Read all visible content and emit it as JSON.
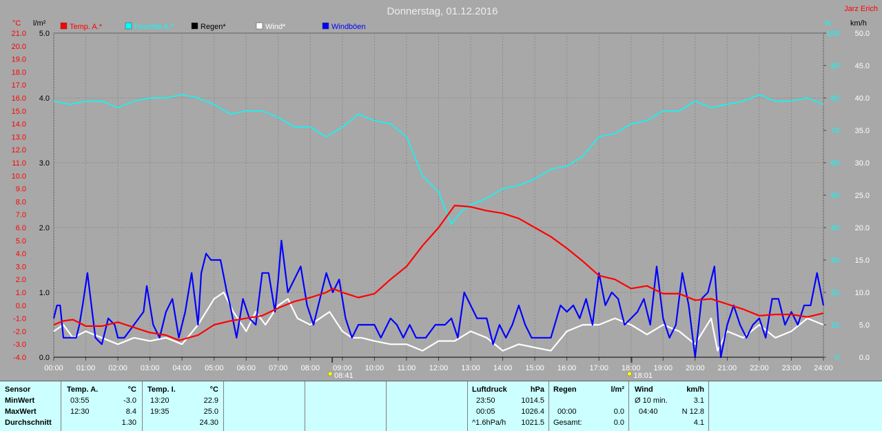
{
  "title": "Donnerstag, 01.12.2016",
  "author": "Jarz Erich",
  "axes": {
    "left_outer_unit": "°C",
    "left_inner_unit": "l/m²",
    "right_inner_unit": "%",
    "right_outer_unit": "km/h",
    "temp_ticks": [
      "21.0",
      "20.0",
      "19.0",
      "18.0",
      "17.0",
      "16.0",
      "15.0",
      "14.0",
      "13.0",
      "12.0",
      "11.0",
      "10.0",
      "9.0",
      "8.0",
      "7.0",
      "6.0",
      "5.0",
      "4.0",
      "3.0",
      "2.0",
      "1.0",
      "0.0",
      "-1.0",
      "-2.0",
      "-3.0",
      "-4.0"
    ],
    "rain_ticks": [
      "5.0",
      "4.0",
      "3.0",
      "2.0",
      "1.0",
      "0.0"
    ],
    "hum_ticks": [
      "100",
      "90",
      "80",
      "70",
      "60",
      "50",
      "40",
      "30",
      "20",
      "10",
      "0"
    ],
    "wind_ticks": [
      "50.0",
      "45.0",
      "40.0",
      "35.0",
      "30.0",
      "25.0",
      "20.0",
      "15.0",
      "10.0",
      "5.0",
      "0.0"
    ],
    "x_ticks": [
      "00:00",
      "01:00",
      "02:00",
      "03:00",
      "04:00",
      "05:00",
      "06:00",
      "07:00",
      "08:00",
      "09:00",
      "10:00",
      "11:00",
      "12:00",
      "13:00",
      "14:00",
      "15:00",
      "16:00",
      "17:00",
      "18:00",
      "19:00",
      "20:00",
      "21:00",
      "22:00",
      "23:00",
      "24:00"
    ],
    "sunrise": "08:41",
    "sunset": "18:01"
  },
  "legend": [
    {
      "label": "Temp. A.*",
      "color": "#ff0000"
    },
    {
      "label": "Feuchte A.*",
      "color": "#00ffff"
    },
    {
      "label": "Regen*",
      "color": "#000000"
    },
    {
      "label": "Wind*",
      "color": "#ffffff"
    },
    {
      "label": "Windböen",
      "color": "#0000ff"
    }
  ],
  "chart_data": {
    "type": "line",
    "title": "Donnerstag, 01.12.2016",
    "x_unit": "hours",
    "xlim": [
      0,
      24
    ],
    "series": [
      {
        "name": "Temp. A.*",
        "color": "#ff0000",
        "axis": "temp",
        "ylim": [
          -4,
          21
        ],
        "points": [
          [
            0,
            -1.5
          ],
          [
            0.3,
            -1.2
          ],
          [
            0.6,
            -1.1
          ],
          [
            1,
            -1.6
          ],
          [
            1.5,
            -1.6
          ],
          [
            2,
            -1.3
          ],
          [
            2.5,
            -1.7
          ],
          [
            3,
            -2.1
          ],
          [
            3.5,
            -2.3
          ],
          [
            3.92,
            -2.7
          ],
          [
            4.5,
            -2.3
          ],
          [
            5,
            -1.5
          ],
          [
            5.5,
            -1.2
          ],
          [
            6,
            -1.0
          ],
          [
            6.5,
            -0.8
          ],
          [
            7,
            -0.2
          ],
          [
            7.5,
            0.3
          ],
          [
            8,
            0.6
          ],
          [
            8.5,
            1.0
          ],
          [
            8.7,
            1.3
          ],
          [
            9,
            1.0
          ],
          [
            9.5,
            0.6
          ],
          [
            10,
            0.9
          ],
          [
            10.5,
            2.0
          ],
          [
            11,
            3.0
          ],
          [
            11.5,
            4.6
          ],
          [
            12,
            6.0
          ],
          [
            12.5,
            7.7
          ],
          [
            13,
            7.6
          ],
          [
            13.5,
            7.3
          ],
          [
            14,
            7.1
          ],
          [
            14.5,
            6.7
          ],
          [
            15,
            6.0
          ],
          [
            15.5,
            5.3
          ],
          [
            16,
            4.4
          ],
          [
            16.5,
            3.4
          ],
          [
            17,
            2.3
          ],
          [
            17.5,
            2.0
          ],
          [
            18,
            1.3
          ],
          [
            18.5,
            1.5
          ],
          [
            19,
            0.9
          ],
          [
            19.5,
            0.9
          ],
          [
            20,
            0.4
          ],
          [
            20.5,
            0.5
          ],
          [
            21,
            0.1
          ],
          [
            21.5,
            -0.3
          ],
          [
            22,
            -0.8
          ],
          [
            22.5,
            -0.7
          ],
          [
            23,
            -0.7
          ],
          [
            23.5,
            -0.9
          ],
          [
            24,
            -0.6
          ]
        ]
      },
      {
        "name": "Feuchte A.*",
        "color": "#00ffff",
        "axis": "humidity",
        "ylim": [
          0,
          100
        ],
        "points": [
          [
            0,
            79
          ],
          [
            0.5,
            78
          ],
          [
            1,
            79
          ],
          [
            1.5,
            79
          ],
          [
            2,
            77
          ],
          [
            2.5,
            79
          ],
          [
            3,
            80
          ],
          [
            3.5,
            80
          ],
          [
            4,
            81
          ],
          [
            4.5,
            80
          ],
          [
            5,
            78
          ],
          [
            5.5,
            75
          ],
          [
            6,
            76
          ],
          [
            6.5,
            76
          ],
          [
            7,
            74
          ],
          [
            7.5,
            71
          ],
          [
            8,
            71
          ],
          [
            8.5,
            68
          ],
          [
            9,
            71
          ],
          [
            9.5,
            75
          ],
          [
            10,
            73
          ],
          [
            10.5,
            72
          ],
          [
            11,
            68
          ],
          [
            11.5,
            56
          ],
          [
            12,
            51
          ],
          [
            12.4,
            41
          ],
          [
            12.7,
            45
          ],
          [
            13,
            47
          ],
          [
            13.5,
            49
          ],
          [
            14,
            52
          ],
          [
            14.5,
            53
          ],
          [
            15,
            55
          ],
          [
            15.5,
            58
          ],
          [
            16,
            59
          ],
          [
            16.5,
            62
          ],
          [
            17,
            68
          ],
          [
            17.5,
            69
          ],
          [
            18,
            72
          ],
          [
            18.5,
            73
          ],
          [
            19,
            76
          ],
          [
            19.5,
            76
          ],
          [
            20,
            79
          ],
          [
            20.5,
            77
          ],
          [
            21,
            78
          ],
          [
            21.5,
            79
          ],
          [
            22,
            81
          ],
          [
            22.5,
            79
          ],
          [
            23,
            79
          ],
          [
            23.5,
            80
          ],
          [
            24,
            78
          ]
        ]
      },
      {
        "name": "Regen*",
        "color": "#000000",
        "axis": "rain",
        "ylim": [
          0,
          5
        ],
        "points": [
          [
            0,
            0
          ],
          [
            24,
            0
          ]
        ]
      },
      {
        "name": "Wind*",
        "color": "#ffffff",
        "axis": "wind",
        "ylim": [
          0,
          50
        ],
        "points": [
          [
            0,
            4
          ],
          [
            0.3,
            5
          ],
          [
            0.6,
            3
          ],
          [
            1,
            4
          ],
          [
            1.5,
            3
          ],
          [
            2,
            2
          ],
          [
            2.5,
            3
          ],
          [
            3,
            2.5
          ],
          [
            3.5,
            3
          ],
          [
            4,
            2
          ],
          [
            4.5,
            5
          ],
          [
            5,
            9
          ],
          [
            5.3,
            10
          ],
          [
            5.6,
            7
          ],
          [
            6,
            4
          ],
          [
            6.3,
            7
          ],
          [
            6.6,
            5
          ],
          [
            7,
            8
          ],
          [
            7.3,
            9
          ],
          [
            7.6,
            6
          ],
          [
            8,
            5
          ],
          [
            8.3,
            6
          ],
          [
            8.6,
            7
          ],
          [
            9,
            4
          ],
          [
            9.3,
            3
          ],
          [
            9.6,
            3
          ],
          [
            10,
            2.5
          ],
          [
            10.5,
            2
          ],
          [
            11,
            2
          ],
          [
            11.5,
            1
          ],
          [
            12,
            2.5
          ],
          [
            12.5,
            2.5
          ],
          [
            13,
            4
          ],
          [
            13.5,
            3
          ],
          [
            14,
            1
          ],
          [
            14.5,
            2
          ],
          [
            15,
            1.5
          ],
          [
            15.5,
            1
          ],
          [
            16,
            4
          ],
          [
            16.5,
            5
          ],
          [
            17,
            5
          ],
          [
            17.5,
            6
          ],
          [
            18,
            5
          ],
          [
            18.5,
            3.5
          ],
          [
            19,
            5
          ],
          [
            19.5,
            4
          ],
          [
            20,
            2
          ],
          [
            20.5,
            6
          ],
          [
            20.7,
            1
          ],
          [
            21,
            4
          ],
          [
            21.5,
            3
          ],
          [
            22,
            5
          ],
          [
            22.5,
            3
          ],
          [
            23,
            4
          ],
          [
            23.5,
            6
          ],
          [
            24,
            5
          ]
        ]
      },
      {
        "name": "Windböen",
        "color": "#0000ff",
        "axis": "wind",
        "ylim": [
          0,
          50
        ],
        "points": [
          [
            0,
            6
          ],
          [
            0.1,
            8
          ],
          [
            0.2,
            8
          ],
          [
            0.3,
            3
          ],
          [
            0.5,
            3
          ],
          [
            0.7,
            3
          ],
          [
            0.8,
            5
          ],
          [
            0.9,
            8
          ],
          [
            1.05,
            13
          ],
          [
            1.2,
            7
          ],
          [
            1.3,
            3
          ],
          [
            1.5,
            2
          ],
          [
            1.7,
            6
          ],
          [
            1.9,
            5
          ],
          [
            2,
            3
          ],
          [
            2.2,
            3
          ],
          [
            2.5,
            5
          ],
          [
            2.8,
            7
          ],
          [
            2.9,
            11
          ],
          [
            3.1,
            5
          ],
          [
            3.3,
            3
          ],
          [
            3.5,
            7
          ],
          [
            3.7,
            9
          ],
          [
            3.9,
            3
          ],
          [
            4.1,
            7
          ],
          [
            4.3,
            13
          ],
          [
            4.5,
            5
          ],
          [
            4.6,
            13
          ],
          [
            4.75,
            16
          ],
          [
            4.9,
            15
          ],
          [
            5.2,
            15
          ],
          [
            5.4,
            10
          ],
          [
            5.5,
            8
          ],
          [
            5.7,
            3
          ],
          [
            5.9,
            9
          ],
          [
            6.1,
            6
          ],
          [
            6.3,
            5
          ],
          [
            6.5,
            13
          ],
          [
            6.7,
            13
          ],
          [
            6.9,
            7
          ],
          [
            7.0,
            12
          ],
          [
            7.1,
            18
          ],
          [
            7.3,
            10
          ],
          [
            7.5,
            12
          ],
          [
            7.7,
            14
          ],
          [
            7.9,
            8
          ],
          [
            8.1,
            5
          ],
          [
            8.3,
            9
          ],
          [
            8.5,
            13
          ],
          [
            8.7,
            10
          ],
          [
            8.9,
            12
          ],
          [
            9.1,
            6
          ],
          [
            9.3,
            3
          ],
          [
            9.5,
            5
          ],
          [
            9.7,
            5
          ],
          [
            10,
            5
          ],
          [
            10.2,
            3
          ],
          [
            10.5,
            6
          ],
          [
            10.7,
            5
          ],
          [
            10.9,
            3
          ],
          [
            11.1,
            5
          ],
          [
            11.3,
            3
          ],
          [
            11.6,
            3
          ],
          [
            11.9,
            5
          ],
          [
            12.2,
            5
          ],
          [
            12.4,
            6
          ],
          [
            12.6,
            3
          ],
          [
            12.8,
            10
          ],
          [
            13,
            8
          ],
          [
            13.2,
            6
          ],
          [
            13.5,
            6
          ],
          [
            13.7,
            2
          ],
          [
            13.9,
            5
          ],
          [
            14.1,
            3
          ],
          [
            14.3,
            5
          ],
          [
            14.5,
            8
          ],
          [
            14.7,
            5
          ],
          [
            14.9,
            3
          ],
          [
            15.2,
            3
          ],
          [
            15.5,
            3
          ],
          [
            15.8,
            8
          ],
          [
            16,
            7
          ],
          [
            16.2,
            8
          ],
          [
            16.4,
            6
          ],
          [
            16.6,
            9
          ],
          [
            16.8,
            5
          ],
          [
            17,
            13
          ],
          [
            17.2,
            8
          ],
          [
            17.4,
            10
          ],
          [
            17.6,
            9
          ],
          [
            17.8,
            5
          ],
          [
            18,
            6
          ],
          [
            18.2,
            7
          ],
          [
            18.4,
            9
          ],
          [
            18.6,
            5
          ],
          [
            18.8,
            14
          ],
          [
            19,
            6
          ],
          [
            19.2,
            3
          ],
          [
            19.4,
            5
          ],
          [
            19.6,
            13
          ],
          [
            19.8,
            8
          ],
          [
            20,
            0
          ],
          [
            20.2,
            9
          ],
          [
            20.4,
            10
          ],
          [
            20.6,
            14
          ],
          [
            20.8,
            0
          ],
          [
            21,
            5
          ],
          [
            21.2,
            8
          ],
          [
            21.4,
            5
          ],
          [
            21.6,
            3
          ],
          [
            21.8,
            5
          ],
          [
            22,
            6
          ],
          [
            22.2,
            3
          ],
          [
            22.4,
            9
          ],
          [
            22.6,
            9
          ],
          [
            22.8,
            5
          ],
          [
            23,
            7
          ],
          [
            23.2,
            5
          ],
          [
            23.4,
            8
          ],
          [
            23.6,
            8
          ],
          [
            23.8,
            13
          ],
          [
            24,
            8
          ]
        ]
      }
    ]
  },
  "panel": {
    "sensor": {
      "h": "Sensor",
      "min": "MinWert",
      "max": "MaxWert",
      "avg": "Durchschnitt"
    },
    "temp_a": {
      "h": "Temp. A.",
      "unit": "°C",
      "min_time": "03:55",
      "min_val": "-3.0",
      "max_time": "12:30",
      "max_val": "8.4",
      "avg": "1.30"
    },
    "temp_i": {
      "h": "Temp. I.",
      "unit": "°C",
      "min_time": "13:20",
      "min_val": "22.9",
      "max_time": "19:35",
      "max_val": "25.0",
      "avg": "24.30"
    },
    "pressure": {
      "h": "Luftdruck",
      "unit": "hPa",
      "min_time": "23:50",
      "min_val": "1014.5",
      "max_time": "00:05",
      "max_val": "1026.4",
      "trend": "^1.6hPa/h",
      "avg": "1021.5"
    },
    "rain": {
      "h": "Regen",
      "unit": "l/m²",
      "time": "00:00",
      "val": "0.0",
      "total_label": "Gesamt:",
      "total": "0.0"
    },
    "wind": {
      "h": "Wind",
      "unit": "km/h",
      "avg_label": "Ø 10 min.",
      "avg_val": "3.1",
      "max_time": "04:40",
      "max_val": "N 12.8",
      "last": "4.1"
    }
  }
}
